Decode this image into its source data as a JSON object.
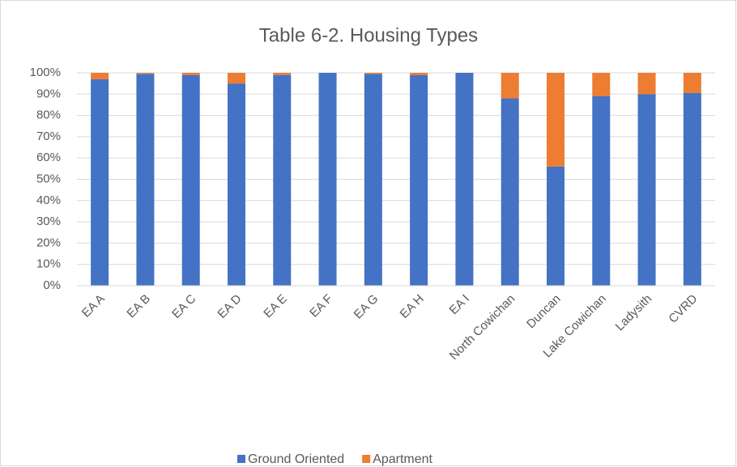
{
  "chart_data": {
    "type": "stacked_bar",
    "title": "Table 6-2. Housing Types",
    "categories": [
      "EA A",
      "EA B",
      "EA C",
      "EA D",
      "EA E",
      "EA F",
      "EA G",
      "EA H",
      "EA I",
      "North Cowichan",
      "Duncan",
      "Lake Cowichan",
      "Ladysith",
      "CVRD"
    ],
    "series": [
      {
        "name": "Ground Oriented",
        "color": "#4472c4",
        "values": [
          97,
          99.5,
          99,
          95,
          99,
          100,
          99.5,
          99,
          100,
          88,
          56,
          89,
          90,
          90.5
        ]
      },
      {
        "name": "Apartment",
        "color": "#ed7d31",
        "values": [
          3,
          0.5,
          1,
          5,
          1,
          0,
          0.5,
          1,
          0,
          12,
          44,
          11,
          10,
          9.5
        ]
      }
    ],
    "ylim": [
      0,
      100
    ],
    "yticks": [
      {
        "value": 0,
        "label": "0%"
      },
      {
        "value": 10,
        "label": "10%"
      },
      {
        "value": 20,
        "label": "20%"
      },
      {
        "value": 30,
        "label": "30%"
      },
      {
        "value": 40,
        "label": "40%"
      },
      {
        "value": 50,
        "label": "50%"
      },
      {
        "value": 60,
        "label": "60%"
      },
      {
        "value": 70,
        "label": "70%"
      },
      {
        "value": 80,
        "label": "80%"
      },
      {
        "value": 90,
        "label": "90%"
      },
      {
        "value": 100,
        "label": "100%"
      }
    ],
    "grid": true,
    "legend": "bottom"
  }
}
